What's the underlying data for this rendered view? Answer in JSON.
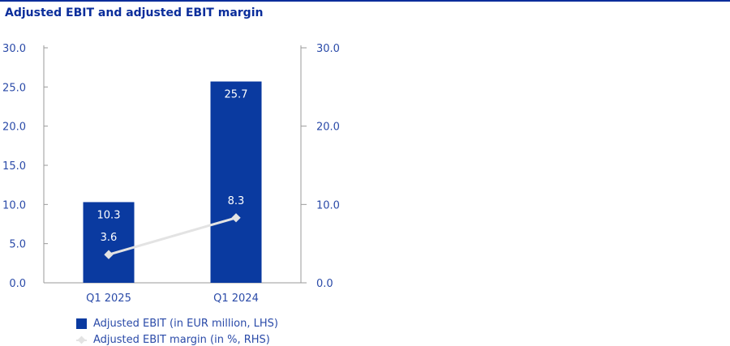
{
  "chart_data": {
    "type": "bar",
    "title": "Adjusted EBIT and adjusted EBIT margin",
    "categories": [
      "Q1 2025",
      "Q1 2024"
    ],
    "series": [
      {
        "name": "Adjusted EBIT (in EUR million, LHS)",
        "type": "bar",
        "axis": "left",
        "values": [
          10.3,
          25.7
        ],
        "labels": [
          "10.3",
          "25.7"
        ]
      },
      {
        "name": "Adjusted EBIT margin (in %, RHS)",
        "type": "line",
        "axis": "right",
        "values": [
          3.6,
          8.3
        ],
        "labels": [
          "3.6",
          "8.3"
        ]
      }
    ],
    "y_left": {
      "min": 0,
      "max": 30,
      "ticks": [
        "0.0",
        "5.0",
        "10.0",
        "15.0",
        "20.0",
        "25.0",
        "30.0"
      ],
      "tick_values": [
        0,
        5,
        10,
        15,
        20,
        25,
        30
      ]
    },
    "y_right": {
      "min": 0,
      "max": 30,
      "ticks": [
        "0.0",
        "10.0",
        "20.0",
        "30.0"
      ],
      "tick_values": [
        0,
        10,
        20,
        30
      ]
    },
    "legend_position": "bottom-left",
    "colors": {
      "bar": "#0a3aa0",
      "line": "#e3e3e3",
      "text": "#2a4aa8",
      "title": "#0a2d9b",
      "axis": "#9a9a9a"
    }
  }
}
